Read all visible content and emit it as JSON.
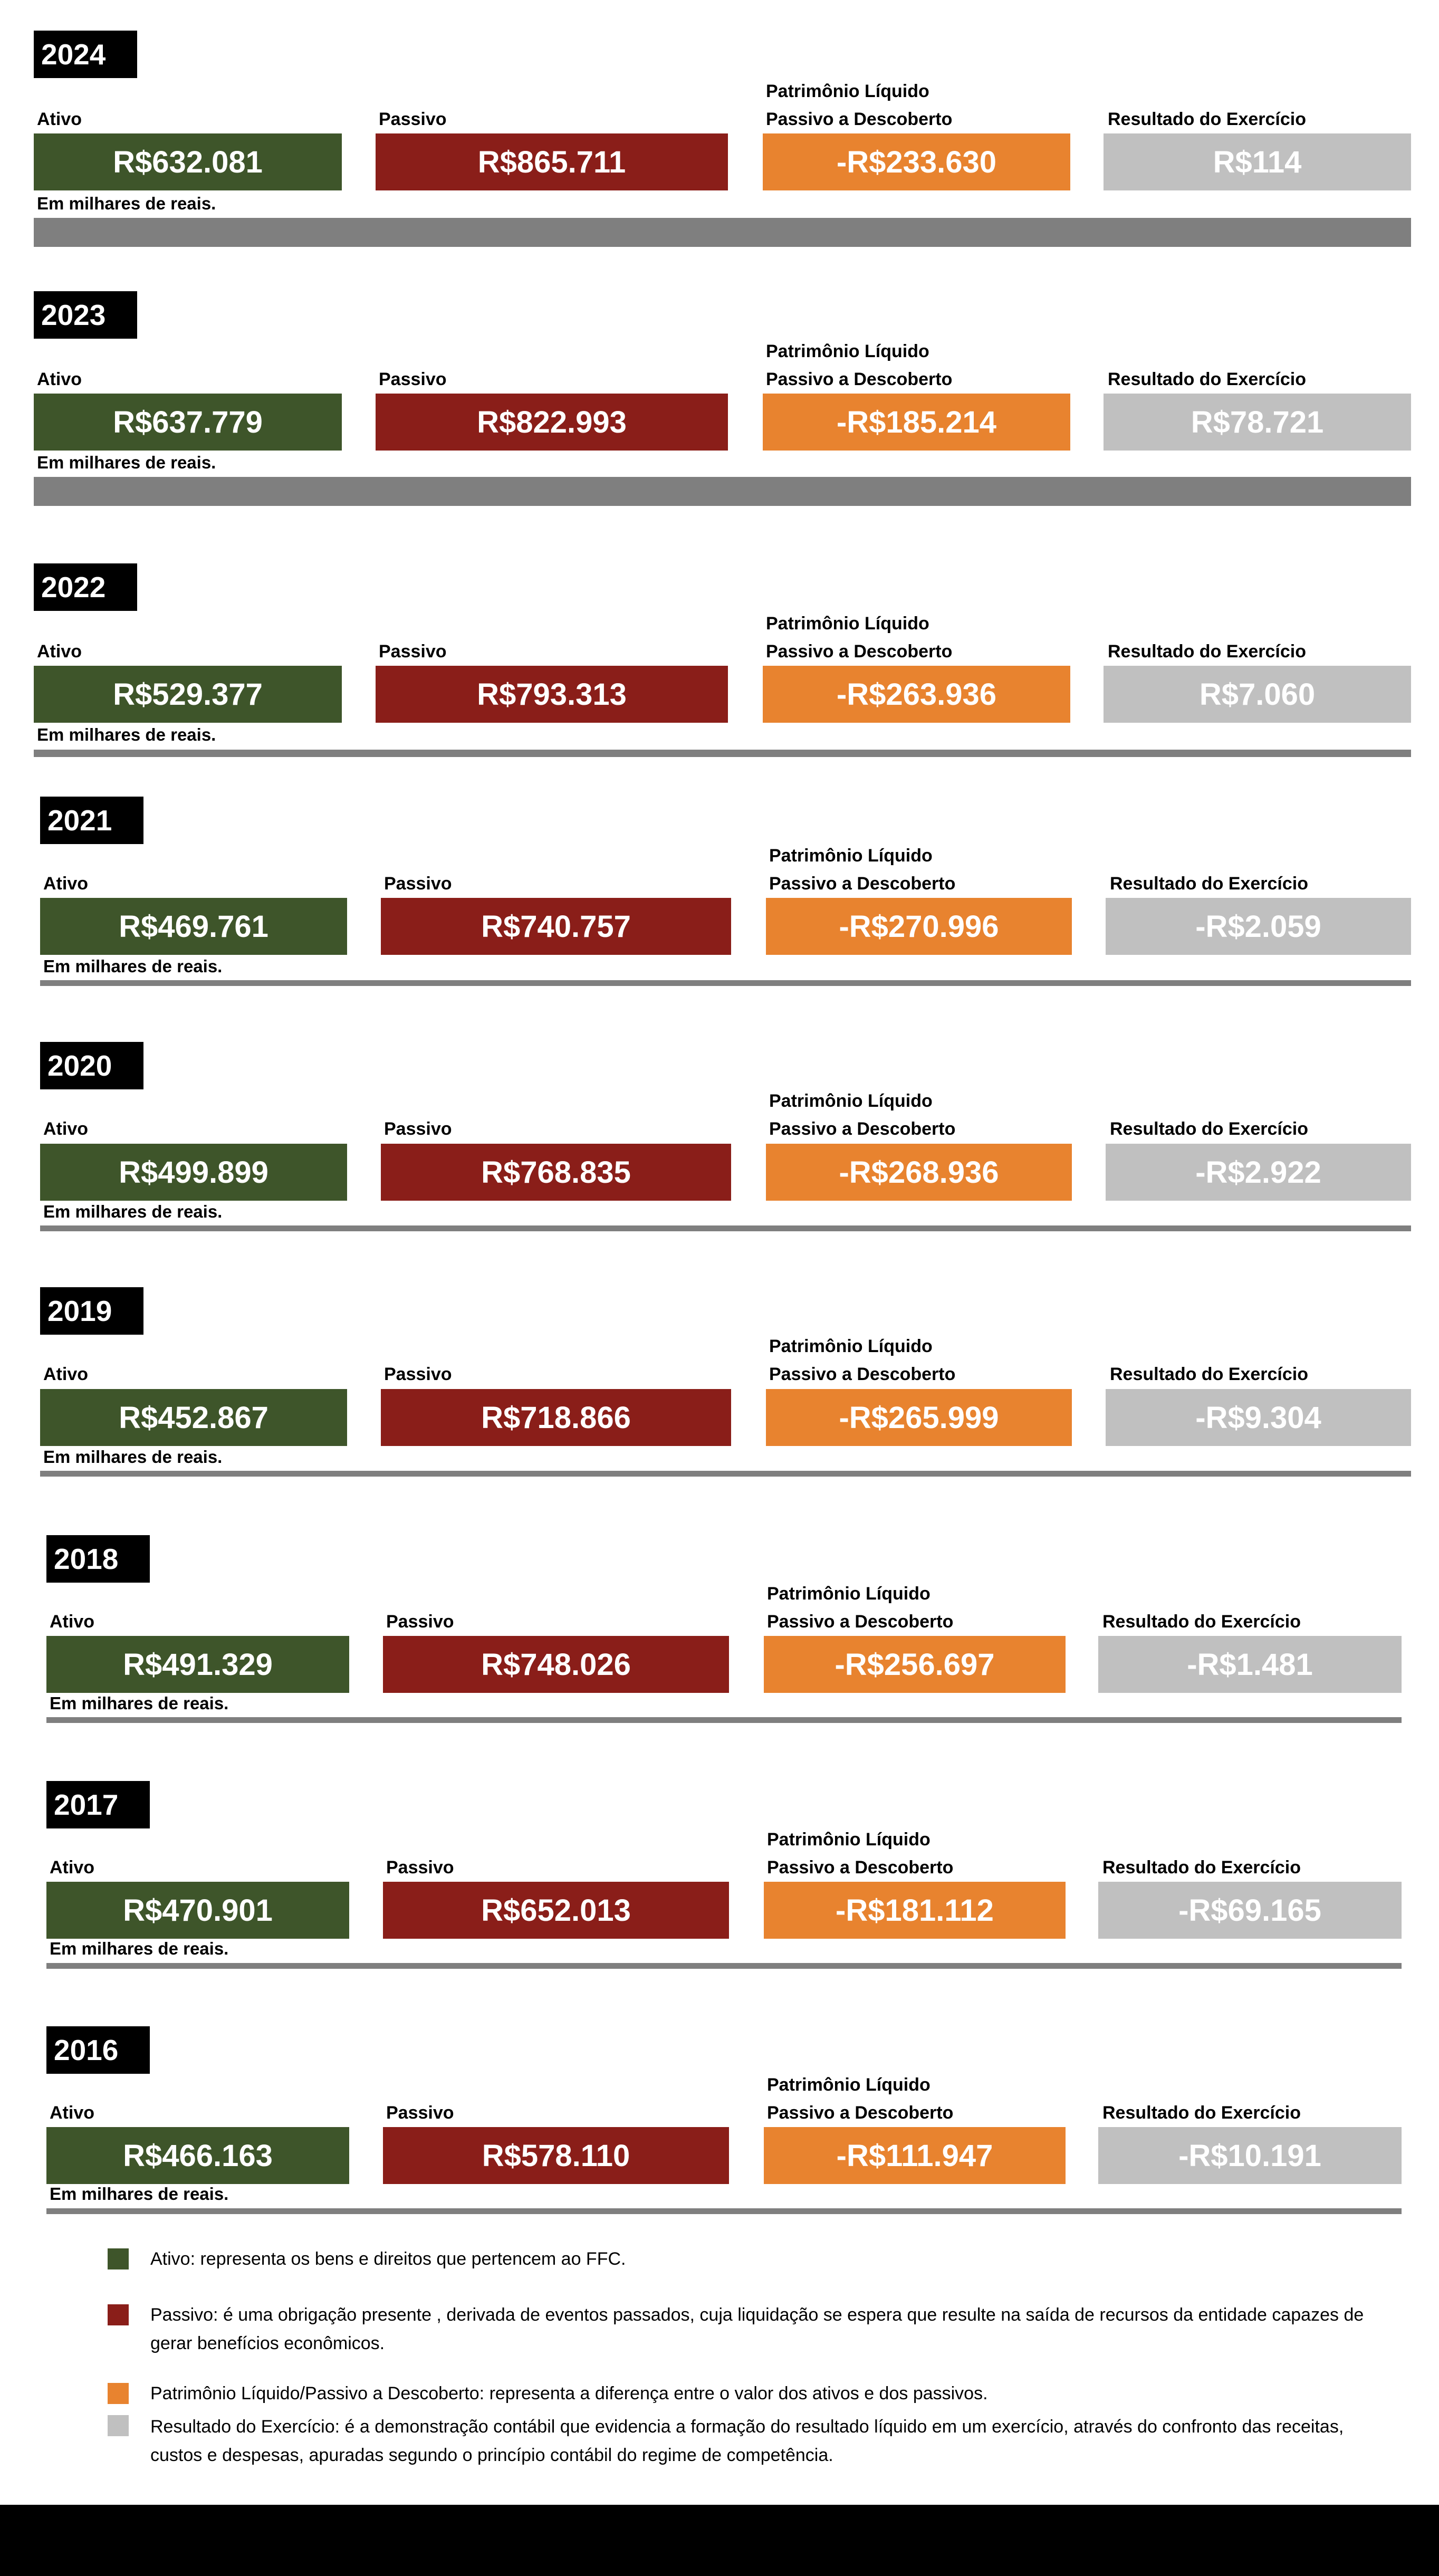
{
  "labels": {
    "ativo": "Ativo",
    "passivo": "Passivo",
    "pl_line1": "Patrimônio Líquido",
    "pl_line2": "Passivo a Descoberto",
    "resultado": "Resultado do Exercício",
    "unit_note": "Em milhares de reais."
  },
  "colors": {
    "ativo": "#3e552a",
    "passivo": "#8a1e19",
    "patrimonio": "#e8832f",
    "resultado": "#c0c0c0",
    "divider": "#7f7f7f"
  },
  "years": [
    {
      "year": "2024",
      "ativo": "R$632.081",
      "passivo": "R$865.711",
      "pl": "-R$233.630",
      "resultado": "R$114"
    },
    {
      "year": "2023",
      "ativo": "R$637.779",
      "passivo": "R$822.993",
      "pl": "-R$185.214",
      "resultado": "R$78.721"
    },
    {
      "year": "2022",
      "ativo": "R$529.377",
      "passivo": "R$793.313",
      "pl": "-R$263.936",
      "resultado": "R$7.060"
    },
    {
      "year": "2021",
      "ativo": "R$469.761",
      "passivo": "R$740.757",
      "pl": "-R$270.996",
      "resultado": "-R$2.059"
    },
    {
      "year": "2020",
      "ativo": "R$499.899",
      "passivo": "R$768.835",
      "pl": "-R$268.936",
      "resultado": "-R$2.922"
    },
    {
      "year": "2019",
      "ativo": "R$452.867",
      "passivo": "R$718.866",
      "pl": "-R$265.999",
      "resultado": "-R$9.304"
    },
    {
      "year": "2018",
      "ativo": "R$491.329",
      "passivo": "R$748.026",
      "pl": "-R$256.697",
      "resultado": "-R$1.481"
    },
    {
      "year": "2017",
      "ativo": "R$470.901",
      "passivo": "R$652.013",
      "pl": "-R$181.112",
      "resultado": "-R$69.165"
    },
    {
      "year": "2016",
      "ativo": "R$466.163",
      "passivo": "R$578.110",
      "pl": "-R$111.947",
      "resultado": "-R$10.191"
    }
  ],
  "legend": [
    {
      "text": "Ativo: representa os bens e direitos que pertencem ao FFC."
    },
    {
      "text": "Passivo: é uma obrigação presente , derivada de eventos passados, cuja liquidação se espera que resulte na saída de recursos da entidade capazes de gerar benefícios econômicos."
    },
    {
      "text": "Patrimônio Líquido/Passivo a Descoberto: representa a diferença entre o valor dos ativos e dos passivos."
    },
    {
      "text": "Resultado do Exercício: é a demonstração contábil que evidencia a formação do resultado líquido em um exercício, através do confronto das receitas, custos e despesas, apuradas segundo o princípio contábil do regime de competência."
    }
  ]
}
